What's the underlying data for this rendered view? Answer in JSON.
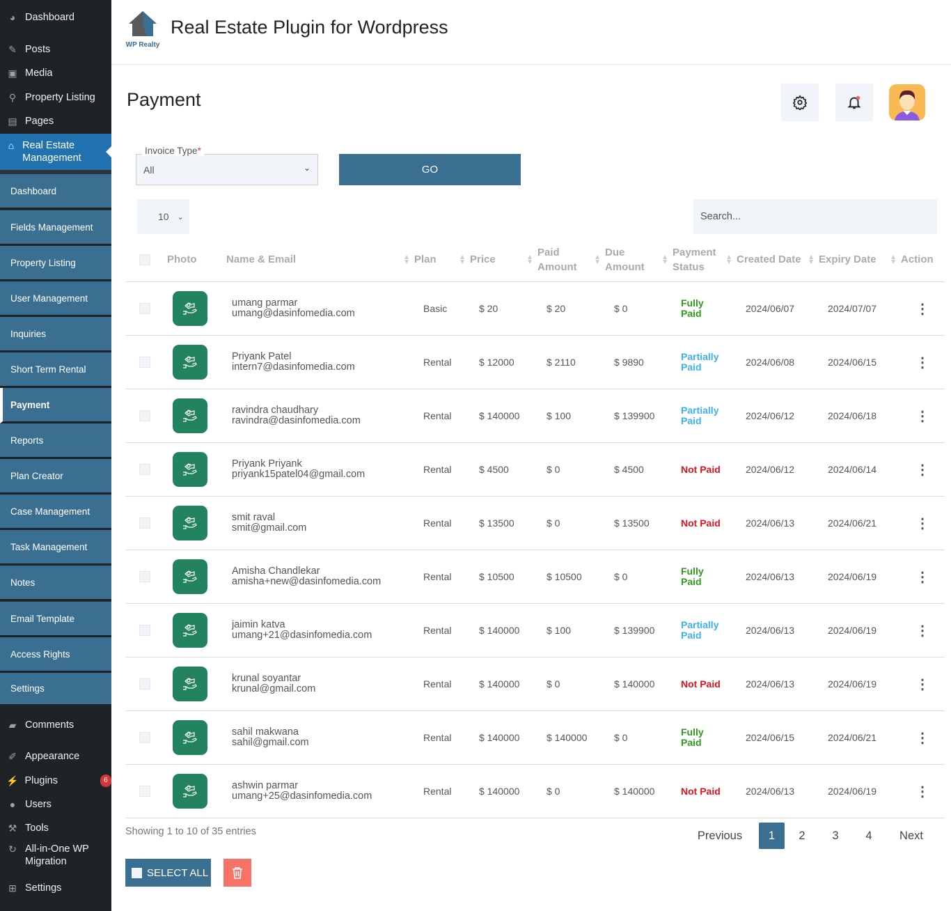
{
  "wp_menu": {
    "top": [
      {
        "label": "Dashboard",
        "icon": "dashboard-icon"
      },
      {
        "label": "Posts",
        "icon": "pin-icon"
      },
      {
        "label": "Media",
        "icon": "media-icon"
      },
      {
        "label": "Property Listing",
        "icon": "location-pin-icon"
      },
      {
        "label": "Pages",
        "icon": "pages-icon"
      },
      {
        "label": "Real Estate Management",
        "icon": "home-icon"
      }
    ],
    "bottom": [
      {
        "label": "Comments",
        "icon": "comment-icon"
      },
      {
        "label": "Appearance",
        "icon": "paintbrush-icon"
      },
      {
        "label": "Plugins",
        "icon": "plugin-icon",
        "badge": "6"
      },
      {
        "label": "Users",
        "icon": "user-icon"
      },
      {
        "label": "Tools",
        "icon": "wrench-icon"
      },
      {
        "label": "All-in-One WP Migration",
        "icon": "migration-icon"
      },
      {
        "label": "Settings",
        "icon": "settings-sliders-icon"
      }
    ]
  },
  "submenu": [
    "Dashboard",
    "Fields Management",
    "Property Listing",
    "User Management",
    "Inquiries",
    "Short Term Rental",
    "Payment",
    "Reports",
    "Plan Creator",
    "Case Management",
    "Task Management",
    "Notes",
    "Email Template",
    "Access Rights",
    "Settings"
  ],
  "header": {
    "logo_text": "WP Realty",
    "title": "Real Estate Plugin for Wordpress"
  },
  "page": {
    "title": "Payment"
  },
  "filter": {
    "label": "Invoice Type",
    "required": "*",
    "value": "All",
    "go": "GO"
  },
  "table_controls": {
    "page_length": "10",
    "search_placeholder": "Search..."
  },
  "columns": [
    "Photo",
    "Name & Email",
    "Plan",
    "Price",
    "Paid Amount",
    "Due Amount",
    "Payment Status",
    "Created Date",
    "Expiry Date",
    "Action"
  ],
  "rows": [
    {
      "name": "umang parmar",
      "email": "umang@dasinfomedia.com",
      "plan": "Basic",
      "price": "$ 20",
      "paid": "$ 20",
      "due": "$ 0",
      "status": "Fully Paid",
      "created": "2024/06/07",
      "expiry": "2024/07/07"
    },
    {
      "name": "Priyank Patel",
      "email": "intern7@dasinfomedia.com",
      "plan": "Rental",
      "price": "$ 12000",
      "paid": "$ 2110",
      "due": "$ 9890",
      "status": "Partially Paid",
      "created": "2024/06/08",
      "expiry": "2024/06/15"
    },
    {
      "name": "ravindra chaudhary",
      "email": "ravindra@dasinfomedia.com",
      "plan": "Rental",
      "price": "$ 140000",
      "paid": "$ 100",
      "due": "$ 139900",
      "status": "Partially Paid",
      "created": "2024/06/12",
      "expiry": "2024/06/18"
    },
    {
      "name": "Priyank Priyank",
      "email": "priyank15patel04@gmail.com",
      "plan": "Rental",
      "price": "$ 4500",
      "paid": "$ 0",
      "due": "$ 4500",
      "status": "Not Paid",
      "created": "2024/06/12",
      "expiry": "2024/06/14"
    },
    {
      "name": "smit raval",
      "email": "smit@gmail.com",
      "plan": "Rental",
      "price": "$ 13500",
      "paid": "$ 0",
      "due": "$ 13500",
      "status": "Not Paid",
      "created": "2024/06/13",
      "expiry": "2024/06/21"
    },
    {
      "name": "Amisha Chandlekar",
      "email": "amisha+new@dasinfomedia.com",
      "plan": "Rental",
      "price": "$ 10500",
      "paid": "$ 10500",
      "due": "$ 0",
      "status": "Fully Paid",
      "created": "2024/06/13",
      "expiry": "2024/06/19"
    },
    {
      "name": "jaimin katva",
      "email": "umang+21@dasinfomedia.com",
      "plan": "Rental",
      "price": "$ 140000",
      "paid": "$ 100",
      "due": "$ 139900",
      "status": "Partially Paid",
      "created": "2024/06/13",
      "expiry": "2024/06/19"
    },
    {
      "name": "krunal soyantar",
      "email": "krunal@gmail.com",
      "plan": "Rental",
      "price": "$ 140000",
      "paid": "$ 0",
      "due": "$ 140000",
      "status": "Not Paid",
      "created": "2024/06/13",
      "expiry": "2024/06/19"
    },
    {
      "name": "sahil makwana",
      "email": "sahil@gmail.com",
      "plan": "Rental",
      "price": "$ 140000",
      "paid": "$ 140000",
      "due": "$ 0",
      "status": "Fully Paid",
      "created": "2024/06/15",
      "expiry": "2024/06/21"
    },
    {
      "name": "ashwin parmar",
      "email": "umang+25@dasinfomedia.com",
      "plan": "Rental",
      "price": "$ 140000",
      "paid": "$ 0",
      "due": "$ 140000",
      "status": "Not Paid",
      "created": "2024/06/13",
      "expiry": "2024/06/19"
    }
  ],
  "status_colors": {
    "Fully Paid": "#2e9b1a",
    "Partially Paid": "#3bb0f5",
    "Not Paid": "#e8101d"
  },
  "footer": {
    "info": "Showing 1 to 10 of 35 entries",
    "previous": "Previous",
    "pages": [
      "1",
      "2",
      "3",
      "4"
    ],
    "current_page": "1",
    "next": "Next",
    "select_all": "SELECT ALL"
  }
}
